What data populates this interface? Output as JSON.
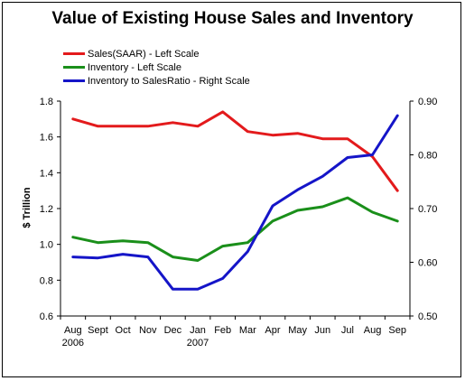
{
  "chart_data": {
    "type": "line",
    "title": "Value of Existing House Sales and Inventory",
    "ylabel": "$ Trillion",
    "y2label": "",
    "x": [
      "Aug",
      "Sept",
      "Oct",
      "Nov",
      "Dec",
      "Jan",
      "Feb",
      "Mar",
      "Apr",
      "May",
      "Jun",
      "Jul",
      "Aug",
      "Sep"
    ],
    "year_labels": [
      {
        "index": 0,
        "label": "2006"
      },
      {
        "index": 5,
        "label": "2007"
      }
    ],
    "ylim": [
      0.6,
      1.8
    ],
    "yticks": [
      "0.6",
      "0.8",
      "1.0",
      "1.2",
      "1.4",
      "1.6",
      "1.8"
    ],
    "y2lim": [
      0.5,
      0.9
    ],
    "y2ticks": [
      "0.50",
      "0.60",
      "0.70",
      "0.80",
      "0.90"
    ],
    "series": [
      {
        "name": "Sales(SAAR) - Left Scale",
        "axis": "left",
        "color": "#e31a1c",
        "values": [
          1.7,
          1.66,
          1.66,
          1.66,
          1.68,
          1.66,
          1.74,
          1.63,
          1.61,
          1.62,
          1.59,
          1.59,
          1.49,
          1.3
        ]
      },
      {
        "name": "Inventory - Left Scale",
        "axis": "left",
        "color": "#1a8f1a",
        "values": [
          1.04,
          1.01,
          1.02,
          1.01,
          0.93,
          0.91,
          0.99,
          1.01,
          1.13,
          1.19,
          1.21,
          1.26,
          1.18,
          1.13
        ]
      },
      {
        "name": "Inventory to SalesRatio - Right Scale",
        "axis": "right",
        "color": "#1515c8",
        "values": [
          0.61,
          0.608,
          0.615,
          0.61,
          0.55,
          0.55,
          0.57,
          0.62,
          0.705,
          0.735,
          0.76,
          0.795,
          0.8,
          0.873
        ]
      }
    ],
    "grid": false,
    "legend": "top-left"
  }
}
